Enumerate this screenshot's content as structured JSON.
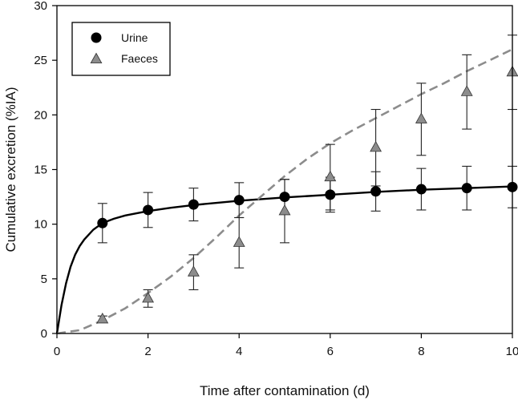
{
  "chart_data": {
    "type": "scatter",
    "title": "",
    "xlabel": "Time after contamination (d)",
    "ylabel": "Cumulative excretion (%IA)",
    "xlim": [
      0,
      10
    ],
    "ylim": [
      0,
      30
    ],
    "xticks": [
      0,
      2,
      4,
      6,
      8,
      10
    ],
    "yticks": [
      0,
      5,
      10,
      15,
      20,
      25,
      30
    ],
    "legend_position": "top-left",
    "series": [
      {
        "name": "Urine",
        "marker": "circle",
        "color": "#000000",
        "x": [
          1,
          2,
          3,
          4,
          5,
          6,
          7,
          8,
          9,
          10
        ],
        "y": [
          10.1,
          11.3,
          11.8,
          12.2,
          12.5,
          12.7,
          13.0,
          13.2,
          13.3,
          13.4
        ],
        "error": [
          1.8,
          1.6,
          1.5,
          1.6,
          1.6,
          1.6,
          1.8,
          1.9,
          2.0,
          1.9
        ],
        "fit": {
          "style": "solid",
          "color": "#000000",
          "x": [
            0,
            0.1,
            0.2,
            0.3,
            0.4,
            0.5,
            0.6,
            0.8,
            1,
            1.25,
            1.5,
            2,
            2.5,
            3,
            4,
            5,
            6,
            7,
            8,
            9,
            10
          ],
          "y": [
            0,
            2.6,
            4.6,
            6.1,
            7.2,
            8.0,
            8.6,
            9.5,
            10.1,
            10.5,
            10.8,
            11.2,
            11.5,
            11.75,
            12.15,
            12.45,
            12.7,
            12.95,
            13.15,
            13.3,
            13.45
          ]
        }
      },
      {
        "name": "Faeces",
        "marker": "triangle",
        "color": "#8c8c8c",
        "x": [
          1,
          2,
          3,
          4,
          5,
          6,
          7,
          8,
          9,
          10
        ],
        "y": [
          1.3,
          3.2,
          5.6,
          8.3,
          11.2,
          14.3,
          17.0,
          19.6,
          22.1,
          23.9
        ],
        "error": [
          0.3,
          0.8,
          1.6,
          2.3,
          2.9,
          3.0,
          3.5,
          3.3,
          3.4,
          3.4
        ],
        "fit": {
          "style": "dashed",
          "color": "#8c8c8c",
          "x": [
            0,
            0.5,
            1,
            1.5,
            2,
            2.5,
            3,
            3.5,
            4,
            4.5,
            5,
            5.5,
            6,
            6.5,
            7,
            7.5,
            8,
            8.5,
            9,
            9.5,
            10
          ],
          "y": [
            0,
            0.3,
            1.2,
            2.3,
            3.7,
            5.2,
            6.9,
            8.8,
            10.8,
            12.6,
            14.4,
            16.0,
            17.4,
            18.6,
            19.7,
            20.8,
            21.9,
            22.9,
            24.0,
            25.0,
            26.0
          ]
        }
      }
    ]
  }
}
